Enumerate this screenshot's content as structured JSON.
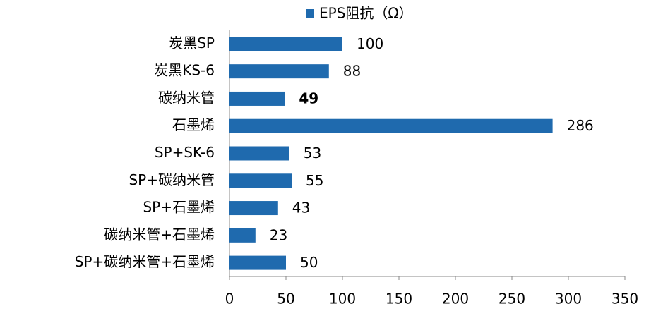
{
  "chart_data": {
    "type": "barh",
    "categories": [
      "炭黑SP",
      "炭黑KS-6",
      "碳纳米管",
      "石墨烯",
      "SP+SK-6",
      "SP+碳纳米管",
      "SP+石墨烯",
      "碳纳米管+石墨烯",
      "SP+碳纳米管+石墨烯"
    ],
    "series": [
      {
        "name": "EPS阻抗（Ω）",
        "color": "#1f6aae",
        "values": [
          100,
          88,
          49,
          286,
          53,
          55,
          43,
          23,
          50
        ]
      }
    ],
    "value_label_colors": [
      "#000000",
      "#000000",
      "#c00000",
      "#000000",
      "#000000",
      "#000000",
      "#000000",
      "#000000",
      "#000000"
    ],
    "xlim": [
      0,
      350
    ],
    "xticks": [
      0,
      50,
      100,
      150,
      200,
      250,
      300,
      350
    ],
    "legend": "top"
  }
}
